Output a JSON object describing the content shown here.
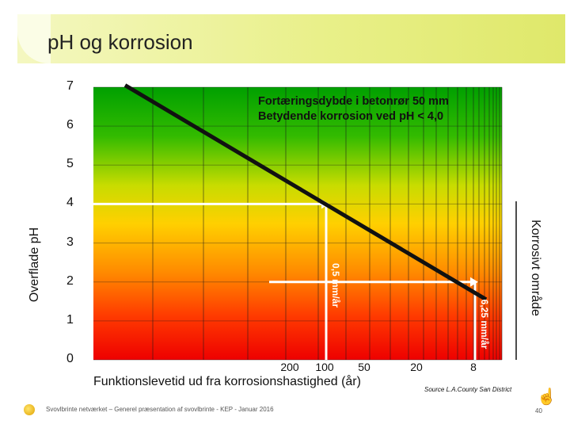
{
  "page": {
    "title": "pH og korrosion",
    "footer": "Svovlbrinte netværket – Generel præsentation af svovlbrinte - KEP - Januar 2016",
    "page_number": "40",
    "source": "Source L.A.County San District"
  },
  "chart_data": {
    "type": "line",
    "xlabel": "Funktionslevetid ud fra korrosionshastighed (år)",
    "ylabel": "Overflade pH",
    "right_label": "Korrosivt område",
    "x_tick_labels": [
      "200",
      "100",
      "50",
      "20",
      "8"
    ],
    "y_ticks": [
      0,
      1,
      2,
      3,
      4,
      5,
      6,
      7
    ],
    "ylim": [
      0,
      7
    ],
    "annotation": [
      "Fortæringsdybde i betonrør 50 mm",
      "Betydende korrosion ved pH < 4,0"
    ],
    "markers": [
      {
        "label": "0,5 mm/år",
        "x": "100",
        "ph": 4.0
      },
      {
        "label": "6,25 mm/år",
        "x": "8",
        "ph": 2.0
      }
    ],
    "background": "vertical gradient red (pH 0) → orange → yellow → green (pH 7)",
    "grid": true,
    "colors": {
      "line": "#111111",
      "markers": "#ffffff",
      "banner": "#e6ee7c"
    }
  }
}
